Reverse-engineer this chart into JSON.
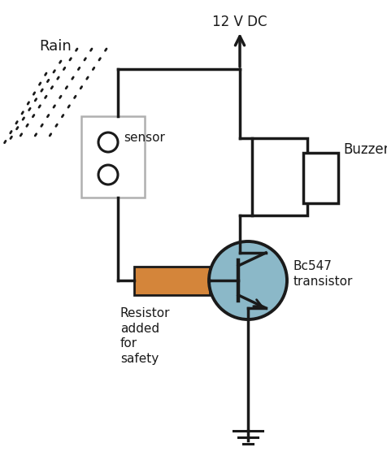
{
  "title": "12 V DC",
  "rain_label": "Rain",
  "sensor_label": "sensor",
  "resistor_label": "Resistor\nadded\nfor\nsafety",
  "transistor_label": "Bc547\ntransistor",
  "buzzer_label": "Buzzer",
  "bg_color": "#ffffff",
  "line_color": "#1a1a1a",
  "resistor_color": "#d4853a",
  "transistor_fill": "#8bb8c8",
  "sensor_box_color": "#b0b0b0",
  "line_width": 2.5,
  "fig_width": 4.77,
  "fig_height": 5.77
}
